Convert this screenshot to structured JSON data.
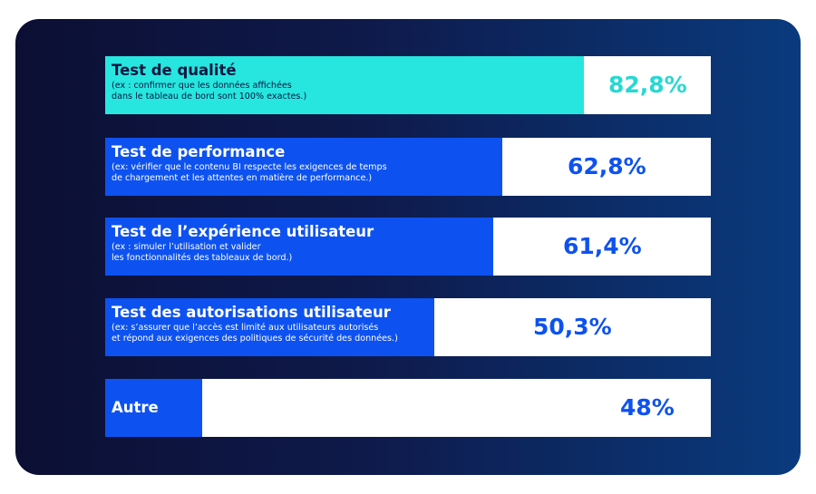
{
  "colors": {
    "background_gradient": [
      "#0c0f33",
      "#0e1a4b",
      "#0a3b7e"
    ],
    "first_bar": "#27e6df",
    "other_bars": "#0d52f0",
    "first_value": "#27d8d3",
    "other_values": "#0d52f0",
    "first_label": "#0c1640",
    "other_labels": "#ffffff"
  },
  "chart_data": {
    "type": "bar",
    "orientation": "horizontal",
    "categories": [
      "Test de qualité",
      "Test de performance",
      "Test de l’expérience utilisateur",
      "Test des autorisations utilisateur",
      "Autre"
    ],
    "descriptions": [
      [
        "(ex : confirmer que les données affichées",
        "dans le tableau de bord sont 100% exactes.)"
      ],
      [
        "(ex: vérifier que le contenu BI respecte les exigences de temps",
        "de chargement et les attentes en matière de performance.)"
      ],
      [
        "(ex : simuler l’utilisation et valider",
        "les fonctionnalités des tableaux de bord.)"
      ],
      [
        "(ex: s’assurer que l’accès est limité aux utilisateurs autorisés",
        "et répond aux exigences des politiques de sécurité des données.)"
      ],
      []
    ],
    "values": [
      82.8,
      62.8,
      61.4,
      50.3,
      48
    ],
    "value_labels": [
      "82,8%",
      "62,8%",
      "61,4%",
      "50,3%",
      "48%"
    ],
    "title": "",
    "xlabel": "",
    "ylabel": ""
  }
}
